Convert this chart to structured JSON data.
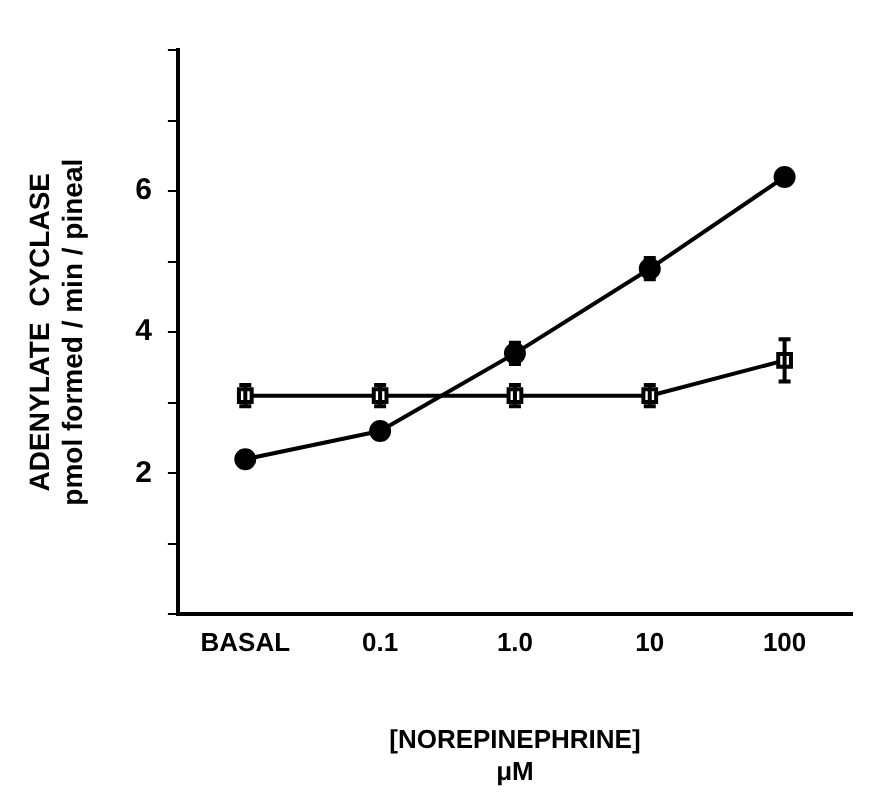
{
  "chart_data": {
    "type": "line",
    "xlabel": "[NOREPINEPHRINE]\nμM",
    "ylabel": "ADENYLATE  CYCLASE\npmol formed / min / pineal",
    "categories": [
      "BASAL",
      "0.1",
      "1.0",
      "10",
      "100"
    ],
    "series": [
      {
        "color": "#000000",
        "marker": "circle",
        "values": [
          2.2,
          2.6,
          3.7,
          4.9,
          6.2
        ],
        "errors": [
          null,
          null,
          0.15,
          0.15,
          null
        ]
      },
      {
        "color": "#000000",
        "marker": "square",
        "values": [
          3.1,
          3.1,
          3.1,
          3.1,
          3.6
        ],
        "errors": [
          0.15,
          0.15,
          0.15,
          0.15,
          0.3
        ]
      }
    ],
    "ylim": [
      0,
      8
    ],
    "yticks": [
      {
        "value": 0,
        "label": null
      },
      {
        "value": 1,
        "label": null
      },
      2,
      {
        "value": 3,
        "label": null
      },
      4,
      {
        "value": 5,
        "label": null
      },
      6,
      {
        "value": 7,
        "label": null
      },
      {
        "value": 8,
        "label": null
      }
    ],
    "grid": false,
    "legend": false,
    "line_style": "solid"
  }
}
